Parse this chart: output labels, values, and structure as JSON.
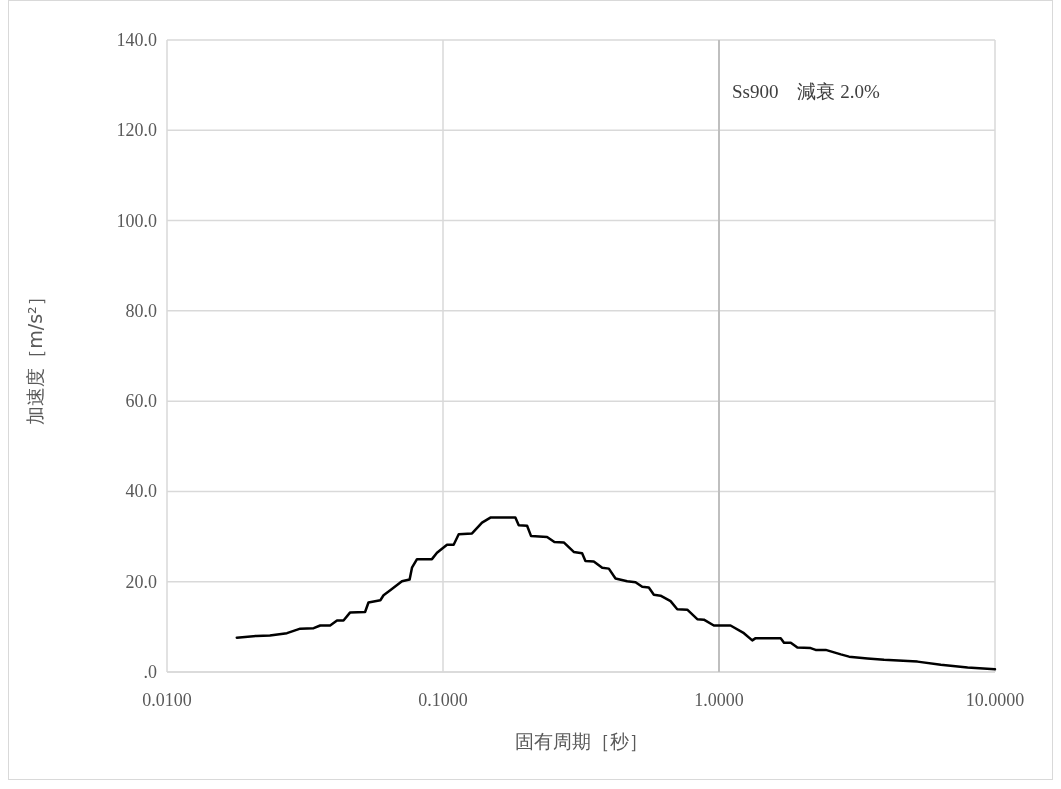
{
  "chart_data": {
    "type": "line",
    "xlabel": "固有周期［秒］",
    "ylabel": "加速度［m/s²］",
    "annotations": [
      "Ss900　減衰 2.0%"
    ],
    "log": "x",
    "grid": true,
    "marker": "none",
    "line_style": "solid",
    "xlim": [
      0.01,
      10
    ],
    "ylim": [
      0,
      140
    ],
    "xticks": [
      {
        "value": 0.01,
        "label": "0.0100"
      },
      {
        "value": 0.1,
        "label": "0.1000"
      },
      {
        "value": 1,
        "label": "1.0000"
      },
      {
        "value": 10,
        "label": "10.0000"
      }
    ],
    "yticks": [
      {
        "value": 0,
        "label": ".0"
      },
      {
        "value": 20,
        "label": "20.0"
      },
      {
        "value": 40,
        "label": "40.0"
      },
      {
        "value": 60,
        "label": "60.0"
      },
      {
        "value": 80,
        "label": "80.0"
      },
      {
        "value": 100,
        "label": "100.0"
      },
      {
        "value": 120,
        "label": "120.0"
      },
      {
        "value": 140,
        "label": "140.0"
      }
    ],
    "ref_lines": [
      {
        "axis": "x",
        "value": 1,
        "color": "#bfbfbf"
      }
    ],
    "series": [
      {
        "color": "#000000",
        "x": [
          0.0179,
          0.0211,
          0.0236,
          0.0272,
          0.0304,
          0.034,
          0.0359,
          0.039,
          0.0413,
          0.0436,
          0.0461,
          0.0522,
          0.0537,
          0.0593,
          0.0609,
          0.0644,
          0.071,
          0.0757,
          0.0772,
          0.0805,
          0.0912,
          0.0951,
          0.1034,
          0.1093,
          0.114,
          0.1274,
          0.1385,
          0.1485,
          0.1829,
          0.1881,
          0.2017,
          0.2085,
          0.2383,
          0.2533,
          0.2739,
          0.2977,
          0.3192,
          0.3281,
          0.3518,
          0.3774,
          0.3989,
          0.4217,
          0.4649,
          0.4984,
          0.527,
          0.5568,
          0.5807,
          0.614,
          0.6676,
          0.7059,
          0.7674,
          0.8343,
          0.8815,
          0.958,
          1.101,
          1.231,
          1.32,
          1.358,
          1.673,
          1.72,
          1.82,
          1.923,
          2.148,
          2.239,
          2.436,
          2.763,
          2.96,
          3.451,
          3.963,
          5.236,
          6.362,
          7.957,
          10
        ],
        "values": [
          7.6,
          8.0,
          8.1,
          8.6,
          9.6,
          9.7,
          10.3,
          10.3,
          11.4,
          11.4,
          13.2,
          13.3,
          15.4,
          15.9,
          17.0,
          18.1,
          20.1,
          20.5,
          23.1,
          25.0,
          25.0,
          26.4,
          28.2,
          28.2,
          30.5,
          30.7,
          33.1,
          34.2,
          34.2,
          32.5,
          32.4,
          30.1,
          29.9,
          28.8,
          28.7,
          26.6,
          26.3,
          24.6,
          24.5,
          23.1,
          22.9,
          20.7,
          20.1,
          19.9,
          18.9,
          18.7,
          17.1,
          16.9,
          15.7,
          13.9,
          13.8,
          11.7,
          11.6,
          10.3,
          10.3,
          8.6,
          7.0,
          7.5,
          7.5,
          6.5,
          6.5,
          5.4,
          5.3,
          4.9,
          4.9,
          3.9,
          3.4,
          3.0,
          2.7,
          2.3,
          1.6,
          1.0,
          0.6
        ]
      }
    ]
  }
}
